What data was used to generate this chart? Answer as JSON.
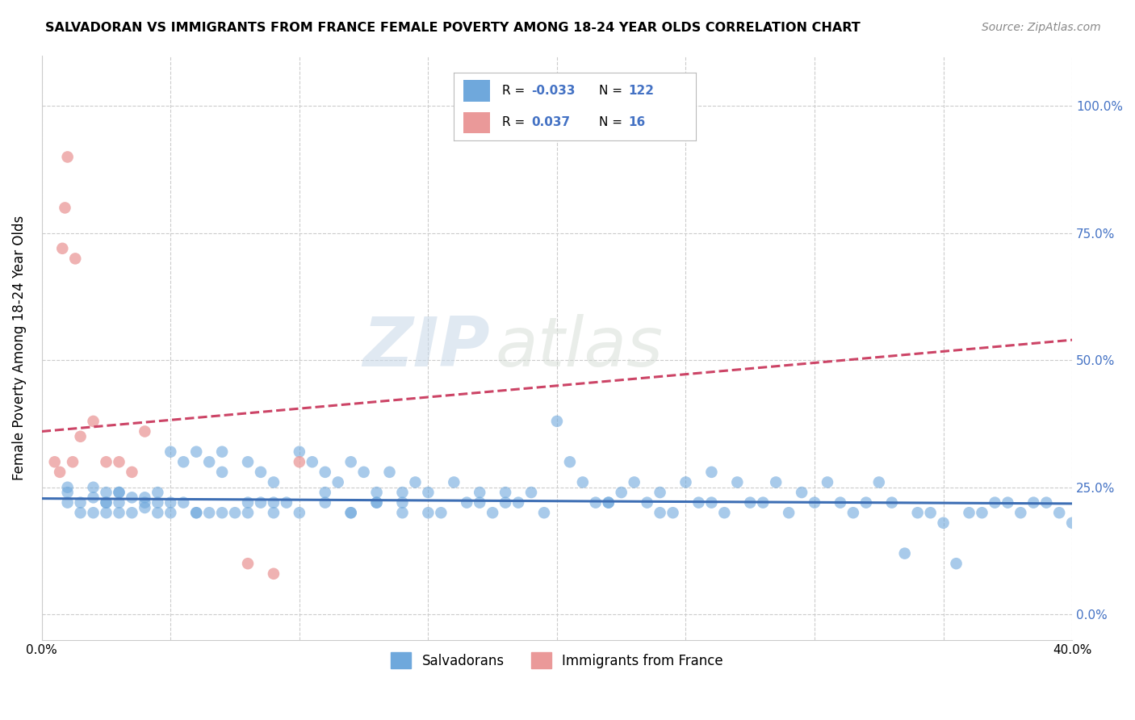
{
  "title": "SALVADORAN VS IMMIGRANTS FROM FRANCE FEMALE POVERTY AMONG 18-24 YEAR OLDS CORRELATION CHART",
  "source": "Source: ZipAtlas.com",
  "ylabel": "Female Poverty Among 18-24 Year Olds",
  "xlim": [
    0.0,
    0.4
  ],
  "ylim": [
    -0.05,
    1.1
  ],
  "xticks": [
    0.0,
    0.05,
    0.1,
    0.15,
    0.2,
    0.25,
    0.3,
    0.35,
    0.4
  ],
  "yticks": [
    0.0,
    0.25,
    0.5,
    0.75,
    1.0
  ],
  "ytick_labels": [
    "0.0%",
    "25.0%",
    "50.0%",
    "75.0%",
    "100.0%"
  ],
  "xtick_labels": [
    "0.0%",
    "",
    "",
    "",
    "",
    "",
    "",
    "",
    "40.0%"
  ],
  "blue_color": "#6fa8dc",
  "pink_color": "#ea9999",
  "blue_line_color": "#3d6eb4",
  "pink_line_color": "#cc4466",
  "background_color": "#ffffff",
  "grid_color": "#cccccc",
  "legend_R_blue": "-0.033",
  "legend_N_blue": "122",
  "legend_R_pink": "0.037",
  "legend_N_pink": "16",
  "blue_scatter_x": [
    0.01,
    0.01,
    0.015,
    0.02,
    0.02,
    0.025,
    0.025,
    0.025,
    0.03,
    0.03,
    0.03,
    0.035,
    0.035,
    0.04,
    0.04,
    0.045,
    0.045,
    0.045,
    0.05,
    0.05,
    0.055,
    0.055,
    0.06,
    0.06,
    0.065,
    0.065,
    0.07,
    0.07,
    0.075,
    0.08,
    0.08,
    0.085,
    0.085,
    0.09,
    0.09,
    0.095,
    0.1,
    0.1,
    0.105,
    0.11,
    0.11,
    0.115,
    0.12,
    0.12,
    0.125,
    0.13,
    0.13,
    0.135,
    0.14,
    0.14,
    0.145,
    0.15,
    0.155,
    0.16,
    0.165,
    0.17,
    0.175,
    0.18,
    0.185,
    0.19,
    0.195,
    0.2,
    0.205,
    0.21,
    0.215,
    0.22,
    0.225,
    0.23,
    0.235,
    0.24,
    0.245,
    0.25,
    0.255,
    0.26,
    0.265,
    0.27,
    0.275,
    0.28,
    0.285,
    0.29,
    0.295,
    0.3,
    0.305,
    0.31,
    0.315,
    0.32,
    0.325,
    0.33,
    0.335,
    0.34,
    0.345,
    0.35,
    0.355,
    0.36,
    0.365,
    0.37,
    0.375,
    0.38,
    0.385,
    0.39,
    0.395,
    0.4,
    0.22,
    0.24,
    0.26,
    0.18,
    0.14,
    0.12,
    0.08,
    0.06,
    0.04,
    0.03,
    0.025,
    0.02,
    0.015,
    0.01,
    0.05,
    0.07,
    0.09,
    0.11,
    0.13,
    0.15,
    0.17
  ],
  "blue_scatter_y": [
    0.22,
    0.25,
    0.2,
    0.23,
    0.25,
    0.2,
    0.22,
    0.24,
    0.2,
    0.22,
    0.24,
    0.23,
    0.2,
    0.21,
    0.23,
    0.22,
    0.24,
    0.2,
    0.32,
    0.2,
    0.3,
    0.22,
    0.32,
    0.2,
    0.3,
    0.2,
    0.28,
    0.32,
    0.2,
    0.3,
    0.2,
    0.28,
    0.22,
    0.26,
    0.2,
    0.22,
    0.32,
    0.2,
    0.3,
    0.28,
    0.22,
    0.26,
    0.3,
    0.2,
    0.28,
    0.24,
    0.22,
    0.28,
    0.24,
    0.2,
    0.26,
    0.24,
    0.2,
    0.26,
    0.22,
    0.24,
    0.2,
    0.22,
    0.22,
    0.24,
    0.2,
    0.38,
    0.3,
    0.26,
    0.22,
    0.22,
    0.24,
    0.26,
    0.22,
    0.24,
    0.2,
    0.26,
    0.22,
    0.28,
    0.2,
    0.26,
    0.22,
    0.22,
    0.26,
    0.2,
    0.24,
    0.22,
    0.26,
    0.22,
    0.2,
    0.22,
    0.26,
    0.22,
    0.12,
    0.2,
    0.2,
    0.18,
    0.1,
    0.2,
    0.2,
    0.22,
    0.22,
    0.2,
    0.22,
    0.22,
    0.2,
    0.18,
    0.22,
    0.2,
    0.22,
    0.24,
    0.22,
    0.2,
    0.22,
    0.2,
    0.22,
    0.24,
    0.22,
    0.2,
    0.22,
    0.24,
    0.22,
    0.2,
    0.22,
    0.24,
    0.22,
    0.2,
    0.22
  ],
  "pink_scatter_x": [
    0.005,
    0.007,
    0.008,
    0.009,
    0.01,
    0.012,
    0.013,
    0.015,
    0.02,
    0.025,
    0.03,
    0.035,
    0.04,
    0.08,
    0.09,
    0.1
  ],
  "pink_scatter_y": [
    0.3,
    0.28,
    0.72,
    0.8,
    0.9,
    0.3,
    0.7,
    0.35,
    0.38,
    0.3,
    0.3,
    0.28,
    0.36,
    0.1,
    0.08,
    0.3
  ],
  "blue_trend_x": [
    0.0,
    0.4
  ],
  "blue_trend_y": [
    0.228,
    0.218
  ],
  "pink_trend_x": [
    0.0,
    0.4
  ],
  "pink_trend_y": [
    0.36,
    0.54
  ],
  "watermark_zip": "ZIP",
  "watermark_atlas": "atlas",
  "legend_label_blue": "Salvadorans",
  "legend_label_pink": "Immigrants from France"
}
